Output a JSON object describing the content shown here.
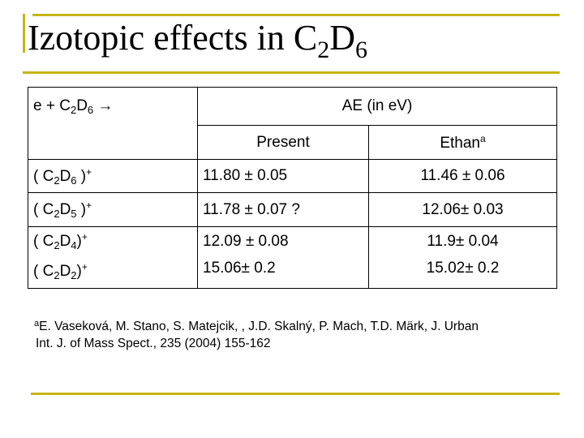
{
  "title": {
    "text": "Izotopic effects in C",
    "sub1": "2",
    "mid": "D",
    "sub2": "6"
  },
  "table": {
    "corner": {
      "pre": "e +  C",
      "sub1": "2",
      "mid": "D",
      "sub2": "6",
      "post": " →"
    },
    "ae_header": "AE (in eV)",
    "col_present": "Present",
    "col_ethan": "Ethan",
    "col_ethan_sup": "a",
    "rows": [
      {
        "ion_pre": "( C",
        "sub1": "2",
        "mid": "D",
        "sub2": "6",
        "ion_post": " )",
        "charge": "+",
        "present": "11.80 ± 0.05",
        "ethan": "11.46 ± 0.06"
      },
      {
        "ion_pre": "( C",
        "sub1": "2",
        "mid": "D",
        "sub2": "5",
        "ion_post": " )",
        "charge": "+",
        "present": "11.78 ± 0.07 ?",
        "ethan": "12.06± 0.03"
      },
      {
        "ion_pre": "( C",
        "sub1": "2",
        "mid": "D",
        "sub2": "4",
        "ion_post": ")",
        "charge": "+",
        "present": "12.09 ± 0.08",
        "ethan": "11.9± 0.04"
      },
      {
        "ion_pre": "( C",
        "sub1": "2",
        "mid": "D",
        "sub2": "2",
        "ion_post": ")",
        "charge": "+",
        "present": "15.06± 0.2",
        "ethan": "15.02± 0.2"
      }
    ]
  },
  "reference": {
    "sup": "a",
    "line1": "E. Vaseková, M. Stano, S. Matejcik, , J.D. Skalný, P. Mach, T.D. Märk, J. Urban",
    "line2": "Int. J. of Mass Spect., 235 (2004) 155-162"
  },
  "colors": {
    "rule": "#c8b414"
  }
}
